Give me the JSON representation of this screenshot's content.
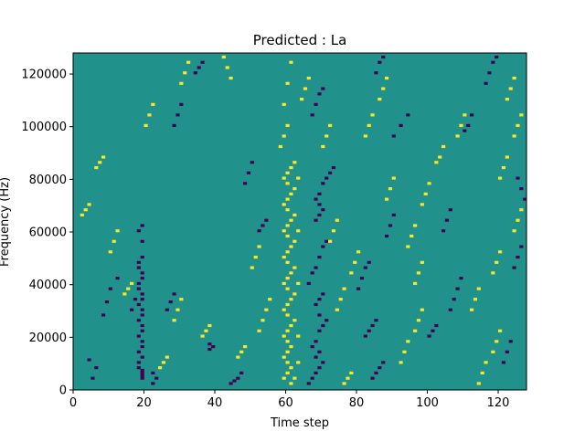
{
  "chart_data": {
    "type": "heatmap",
    "title": "Predicted : La",
    "xlabel": "Time step",
    "ylabel": "Frequency (Hz)",
    "xlim": [
      0,
      128
    ],
    "ylim": [
      0,
      128000
    ],
    "x_ticks": [
      "0",
      "20",
      "40",
      "60",
      "80",
      "100",
      "120"
    ],
    "y_ticks": [
      "0",
      "20000",
      "40000",
      "60000",
      "80000",
      "100000",
      "120000"
    ],
    "colormap": [
      "#440154",
      "#21918c",
      "#fde725"
    ],
    "background_color": "#21918c",
    "value_levels": [
      0,
      1,
      2
    ],
    "grid": false,
    "patches_note": "cells not listed have the middle value (1)",
    "cells_low": [
      [
        19,
        4
      ],
      [
        19,
        5
      ],
      [
        19,
        6
      ],
      [
        19,
        7
      ],
      [
        18,
        8
      ],
      [
        18,
        10
      ],
      [
        19,
        12
      ],
      [
        18,
        14
      ],
      [
        19,
        16
      ],
      [
        19,
        18
      ],
      [
        18,
        20
      ],
      [
        19,
        22
      ],
      [
        19,
        24
      ],
      [
        18,
        26
      ],
      [
        19,
        28
      ],
      [
        19,
        30
      ],
      [
        18,
        32
      ],
      [
        19,
        34
      ],
      [
        19,
        36
      ],
      [
        18,
        38
      ],
      [
        18,
        40
      ],
      [
        19,
        42
      ],
      [
        19,
        44
      ],
      [
        18,
        46
      ],
      [
        18,
        48
      ],
      [
        19,
        50
      ],
      [
        19,
        56
      ],
      [
        18,
        60
      ],
      [
        19,
        62
      ],
      [
        22,
        2
      ],
      [
        23,
        4
      ],
      [
        22,
        6
      ],
      [
        38,
        15
      ],
      [
        39,
        16
      ],
      [
        38,
        17
      ],
      [
        44,
        2
      ],
      [
        45,
        3
      ],
      [
        46,
        4
      ],
      [
        47,
        6
      ],
      [
        5,
        4
      ],
      [
        6,
        8
      ],
      [
        4,
        11
      ],
      [
        8,
        28
      ],
      [
        9,
        33
      ],
      [
        10,
        38
      ],
      [
        12,
        42
      ],
      [
        26,
        30
      ],
      [
        27,
        33
      ],
      [
        28,
        36
      ],
      [
        16,
        30
      ],
      [
        17,
        34
      ],
      [
        66,
        2
      ],
      [
        67,
        4
      ],
      [
        68,
        6
      ],
      [
        69,
        8
      ],
      [
        70,
        10
      ],
      [
        68,
        12
      ],
      [
        69,
        14
      ],
      [
        67,
        16
      ],
      [
        68,
        18
      ],
      [
        69,
        22
      ],
      [
        70,
        24
      ],
      [
        71,
        26
      ],
      [
        69,
        28
      ],
      [
        68,
        32
      ],
      [
        69,
        34
      ],
      [
        70,
        36
      ],
      [
        66,
        40
      ],
      [
        67,
        44
      ],
      [
        68,
        46
      ],
      [
        69,
        50
      ],
      [
        70,
        54
      ],
      [
        71,
        56
      ],
      [
        68,
        64
      ],
      [
        69,
        66
      ],
      [
        70,
        68
      ],
      [
        69,
        70
      ],
      [
        68,
        72
      ],
      [
        69,
        74
      ],
      [
        70,
        78
      ],
      [
        71,
        80
      ],
      [
        72,
        82
      ],
      [
        73,
        84
      ],
      [
        67,
        104
      ],
      [
        68,
        108
      ],
      [
        69,
        112
      ],
      [
        70,
        114
      ],
      [
        84,
        4
      ],
      [
        85,
        6
      ],
      [
        86,
        8
      ],
      [
        87,
        10
      ],
      [
        82,
        20
      ],
      [
        83,
        22
      ],
      [
        84,
        24
      ],
      [
        85,
        26
      ],
      [
        80,
        38
      ],
      [
        81,
        42
      ],
      [
        82,
        46
      ],
      [
        83,
        48
      ],
      [
        88,
        58
      ],
      [
        89,
        62
      ],
      [
        90,
        66
      ],
      [
        90,
        96
      ],
      [
        92,
        100
      ],
      [
        94,
        104
      ],
      [
        85,
        120
      ],
      [
        86,
        124
      ],
      [
        87,
        126
      ],
      [
        100,
        20
      ],
      [
        101,
        22
      ],
      [
        102,
        24
      ],
      [
        106,
        30
      ],
      [
        107,
        34
      ],
      [
        108,
        38
      ],
      [
        109,
        42
      ],
      [
        104,
        60
      ],
      [
        105,
        64
      ],
      [
        106,
        68
      ],
      [
        110,
        98
      ],
      [
        111,
        100
      ],
      [
        112,
        104
      ],
      [
        116,
        116
      ],
      [
        117,
        120
      ],
      [
        118,
        124
      ],
      [
        119,
        126
      ],
      [
        121,
        10
      ],
      [
        122,
        14
      ],
      [
        123,
        18
      ],
      [
        124,
        46
      ],
      [
        125,
        50
      ],
      [
        126,
        54
      ],
      [
        127,
        72
      ],
      [
        126,
        76
      ],
      [
        125,
        80
      ],
      [
        34,
        120
      ],
      [
        35,
        122
      ],
      [
        36,
        124
      ],
      [
        28,
        100
      ],
      [
        29,
        104
      ],
      [
        30,
        108
      ],
      [
        52,
        60
      ],
      [
        53,
        62
      ],
      [
        54,
        64
      ],
      [
        48,
        78
      ],
      [
        49,
        82
      ],
      [
        50,
        86
      ]
    ],
    "cells_high": [
      [
        59,
        4
      ],
      [
        60,
        6
      ],
      [
        61,
        8
      ],
      [
        60,
        10
      ],
      [
        59,
        12
      ],
      [
        60,
        14
      ],
      [
        61,
        16
      ],
      [
        60,
        18
      ],
      [
        59,
        20
      ],
      [
        60,
        22
      ],
      [
        61,
        24
      ],
      [
        62,
        26
      ],
      [
        60,
        28
      ],
      [
        59,
        30
      ],
      [
        60,
        32
      ],
      [
        61,
        34
      ],
      [
        62,
        36
      ],
      [
        60,
        38
      ],
      [
        59,
        40
      ],
      [
        60,
        42
      ],
      [
        61,
        44
      ],
      [
        62,
        46
      ],
      [
        60,
        48
      ],
      [
        59,
        50
      ],
      [
        60,
        52
      ],
      [
        61,
        54
      ],
      [
        62,
        56
      ],
      [
        60,
        58
      ],
      [
        59,
        60
      ],
      [
        60,
        62
      ],
      [
        61,
        64
      ],
      [
        62,
        66
      ],
      [
        60,
        68
      ],
      [
        59,
        70
      ],
      [
        60,
        72
      ],
      [
        61,
        74
      ],
      [
        62,
        76
      ],
      [
        60,
        78
      ],
      [
        59,
        80
      ],
      [
        60,
        82
      ],
      [
        61,
        84
      ],
      [
        62,
        86
      ],
      [
        61,
        2
      ],
      [
        62,
        4
      ],
      [
        63,
        10
      ],
      [
        63,
        20
      ],
      [
        63,
        40
      ],
      [
        63,
        60
      ],
      [
        63,
        80
      ],
      [
        58,
        92
      ],
      [
        59,
        96
      ],
      [
        60,
        100
      ],
      [
        59,
        108
      ],
      [
        60,
        116
      ],
      [
        61,
        124
      ],
      [
        52,
        22
      ],
      [
        53,
        26
      ],
      [
        54,
        30
      ],
      [
        55,
        34
      ],
      [
        50,
        46
      ],
      [
        51,
        50
      ],
      [
        52,
        54
      ],
      [
        46,
        12
      ],
      [
        47,
        14
      ],
      [
        48,
        16
      ],
      [
        36,
        20
      ],
      [
        37,
        22
      ],
      [
        38,
        24
      ],
      [
        28,
        26
      ],
      [
        29,
        30
      ],
      [
        30,
        34
      ],
      [
        24,
        8
      ],
      [
        25,
        10
      ],
      [
        26,
        12
      ],
      [
        14,
        36
      ],
      [
        15,
        38
      ],
      [
        16,
        40
      ],
      [
        10,
        52
      ],
      [
        11,
        56
      ],
      [
        12,
        60
      ],
      [
        2,
        66
      ],
      [
        3,
        68
      ],
      [
        4,
        70
      ],
      [
        6,
        84
      ],
      [
        7,
        86
      ],
      [
        8,
        88
      ],
      [
        20,
        100
      ],
      [
        21,
        104
      ],
      [
        22,
        108
      ],
      [
        30,
        116
      ],
      [
        31,
        120
      ],
      [
        32,
        124
      ],
      [
        42,
        126
      ],
      [
        43,
        122
      ],
      [
        44,
        118
      ],
      [
        76,
        2
      ],
      [
        77,
        4
      ],
      [
        78,
        6
      ],
      [
        74,
        30
      ],
      [
        75,
        34
      ],
      [
        76,
        38
      ],
      [
        78,
        44
      ],
      [
        79,
        48
      ],
      [
        80,
        52
      ],
      [
        72,
        56
      ],
      [
        73,
        60
      ],
      [
        74,
        64
      ],
      [
        92,
        10
      ],
      [
        93,
        14
      ],
      [
        94,
        18
      ],
      [
        96,
        22
      ],
      [
        97,
        26
      ],
      [
        98,
        30
      ],
      [
        96,
        40
      ],
      [
        97,
        44
      ],
      [
        98,
        48
      ],
      [
        94,
        54
      ],
      [
        95,
        58
      ],
      [
        96,
        62
      ],
      [
        98,
        70
      ],
      [
        99,
        74
      ],
      [
        100,
        78
      ],
      [
        102,
        86
      ],
      [
        103,
        88
      ],
      [
        104,
        92
      ],
      [
        108,
        96
      ],
      [
        109,
        100
      ],
      [
        110,
        104
      ],
      [
        114,
        2
      ],
      [
        115,
        6
      ],
      [
        116,
        10
      ],
      [
        118,
        14
      ],
      [
        119,
        18
      ],
      [
        120,
        22
      ],
      [
        112,
        30
      ],
      [
        113,
        34
      ],
      [
        114,
        38
      ],
      [
        118,
        44
      ],
      [
        119,
        48
      ],
      [
        120,
        52
      ],
      [
        124,
        60
      ],
      [
        125,
        64
      ],
      [
        126,
        68
      ],
      [
        120,
        80
      ],
      [
        121,
        84
      ],
      [
        122,
        88
      ],
      [
        124,
        96
      ],
      [
        125,
        100
      ],
      [
        126,
        104
      ],
      [
        122,
        110
      ],
      [
        123,
        114
      ],
      [
        124,
        118
      ],
      [
        82,
        96
      ],
      [
        83,
        100
      ],
      [
        84,
        104
      ],
      [
        86,
        110
      ],
      [
        87,
        114
      ],
      [
        88,
        118
      ],
      [
        70,
        92
      ],
      [
        71,
        96
      ],
      [
        72,
        100
      ],
      [
        64,
        110
      ],
      [
        65,
        114
      ],
      [
        66,
        118
      ],
      [
        88,
        72
      ],
      [
        89,
        76
      ],
      [
        90,
        80
      ]
    ]
  }
}
